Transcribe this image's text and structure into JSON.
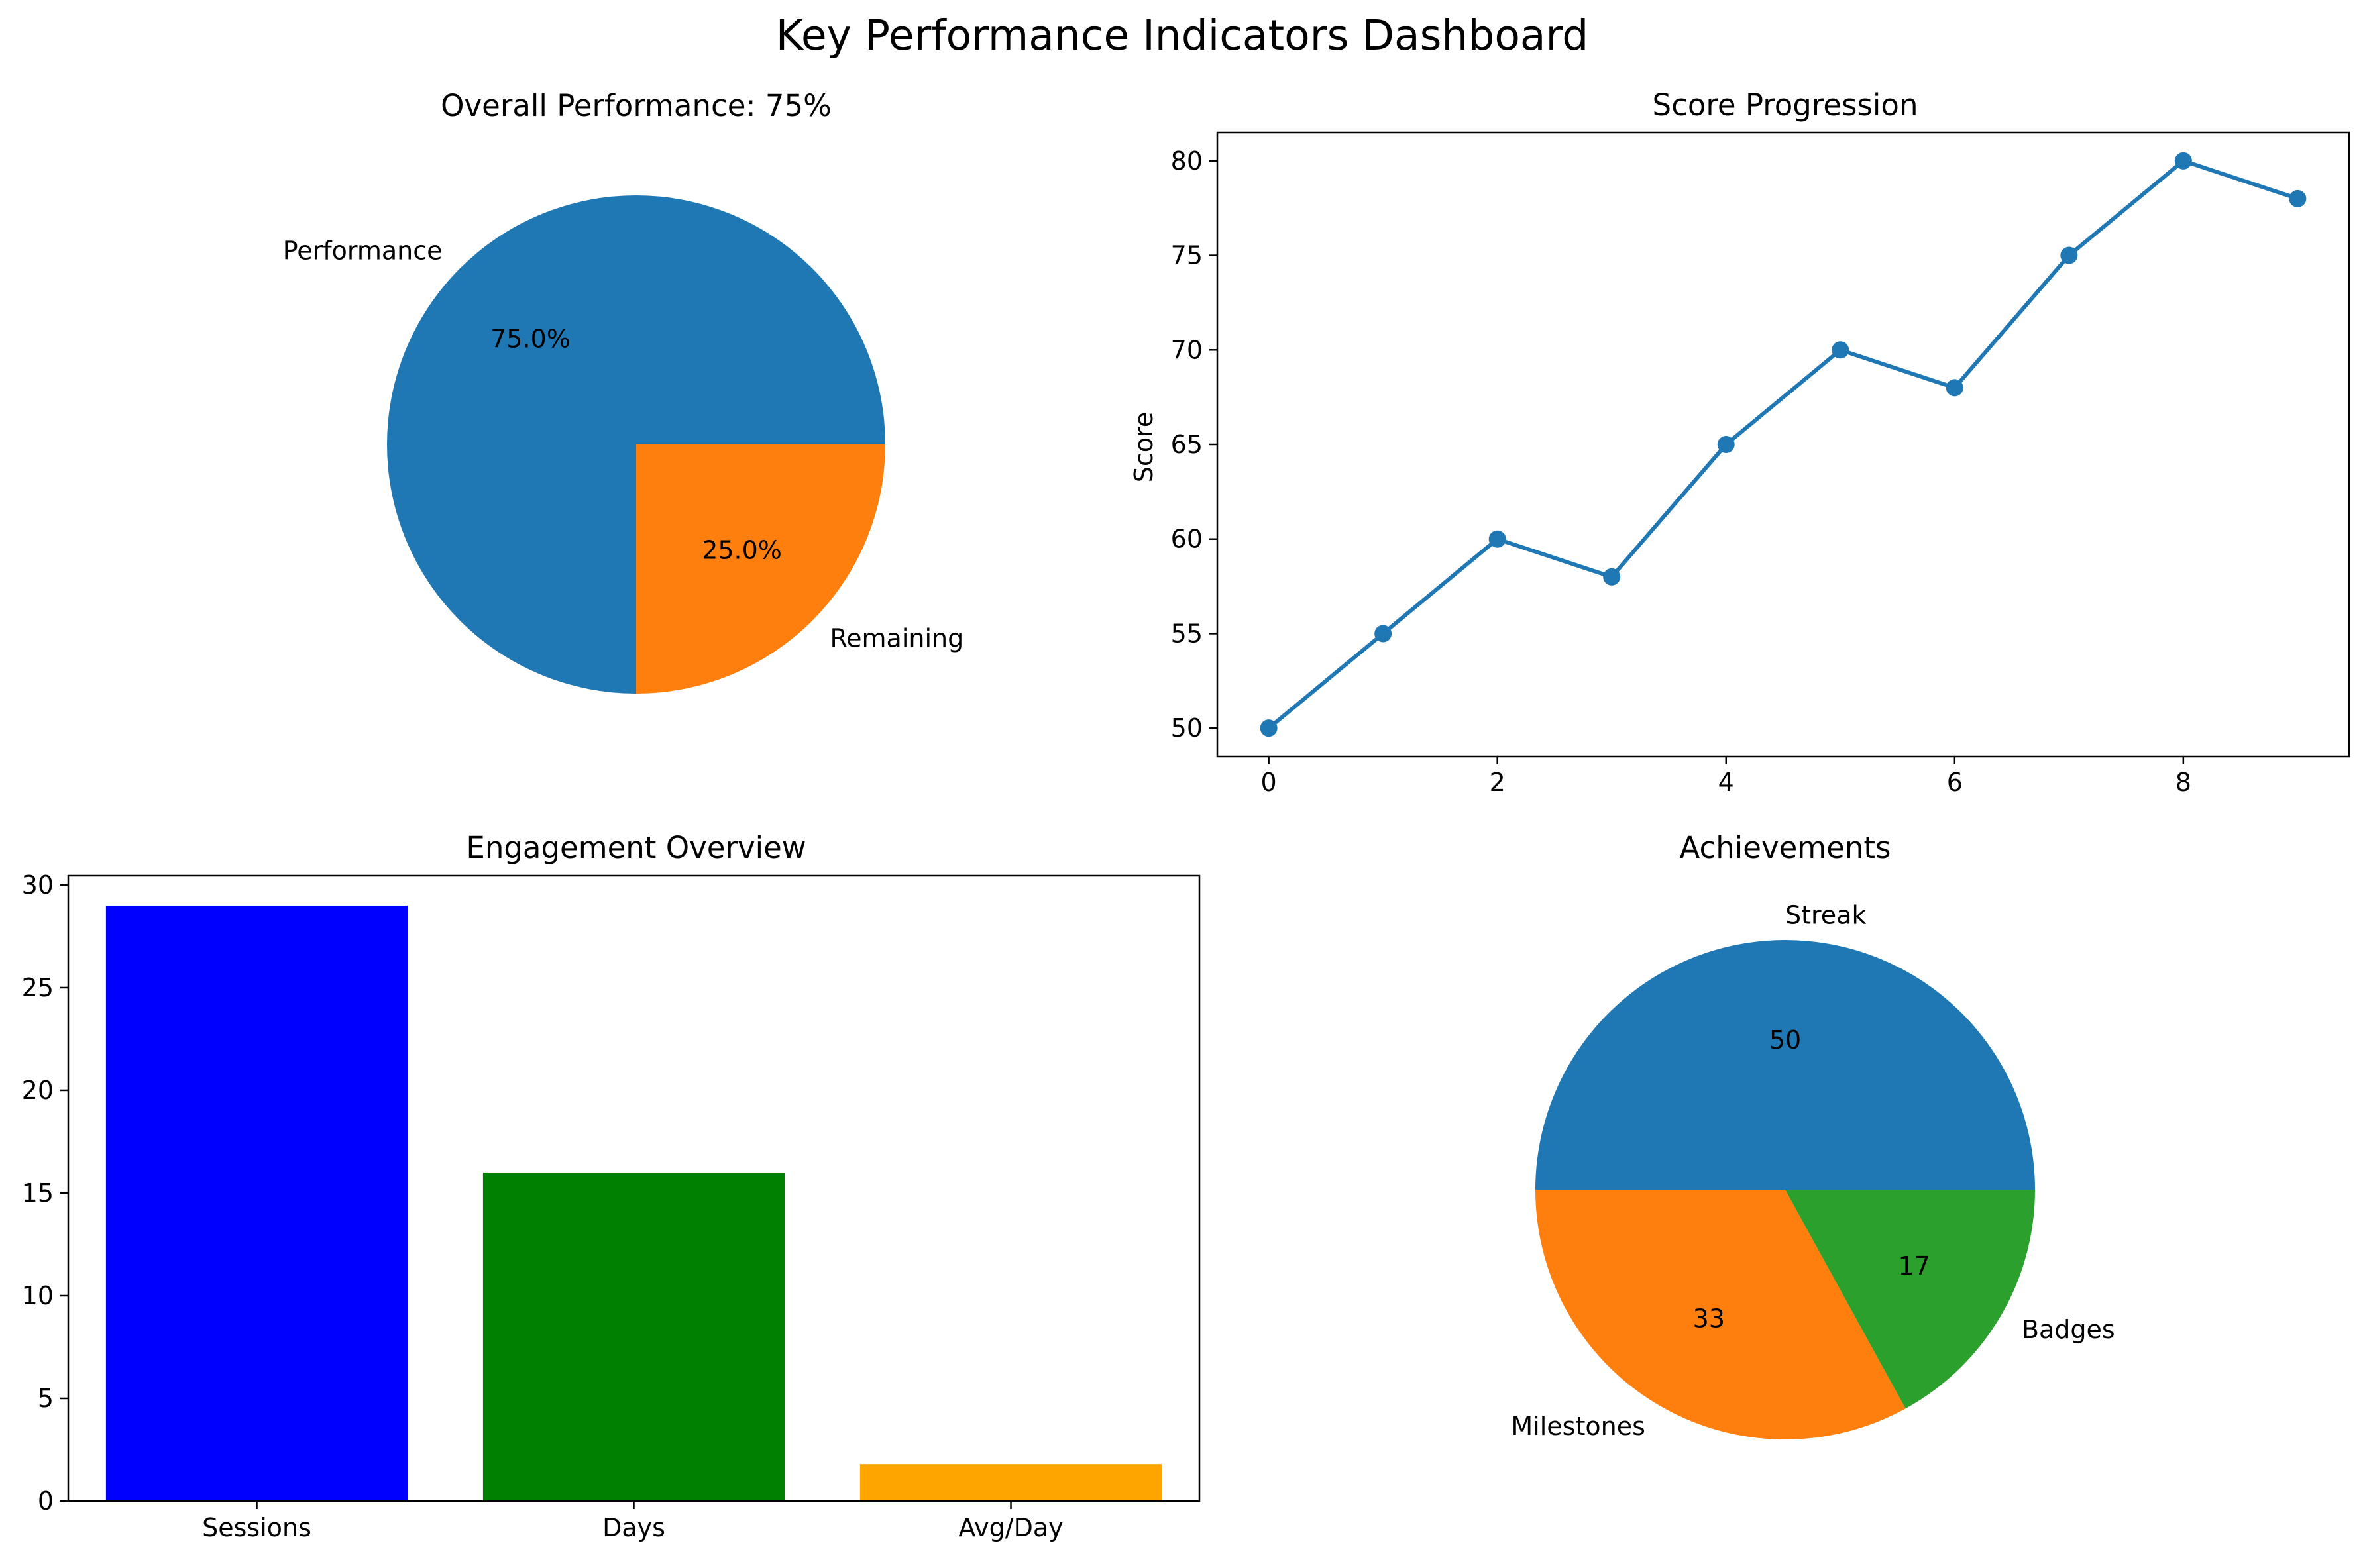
{
  "page_title": "Key Performance Indicators Dashboard",
  "colors": {
    "blue": "#1f77b4",
    "orange": "#ff7f0e",
    "green": "#2ca02c"
  },
  "chart_data": [
    {
      "id": "overall-performance",
      "type": "pie",
      "title": "Overall Performance: 75%",
      "slices": [
        {
          "label": "Performance",
          "value": 75,
          "pct_label": "75.0%",
          "color": "#1f77b4"
        },
        {
          "label": "Remaining",
          "value": 25,
          "pct_label": "25.0%",
          "color": "#ff7f0e"
        }
      ],
      "start_angle_deg": 0,
      "direction": "counterclockwise"
    },
    {
      "id": "score-progression",
      "type": "line",
      "title": "Score Progression",
      "xlabel": "",
      "ylabel": "Score",
      "x": [
        0,
        1,
        2,
        3,
        4,
        5,
        6,
        7,
        8,
        9
      ],
      "y": [
        50,
        55,
        60,
        58,
        65,
        70,
        68,
        75,
        80,
        78
      ],
      "xlim": [
        -0.45,
        9.45
      ],
      "ylim": [
        48.5,
        81.5
      ],
      "xticks": [
        0,
        2,
        4,
        6,
        8
      ],
      "yticks": [
        50,
        55,
        60,
        65,
        70,
        75,
        80
      ],
      "color": "#1f77b4",
      "marker": "circle",
      "grid": false
    },
    {
      "id": "engagement-overview",
      "type": "bar",
      "title": "Engagement Overview",
      "categories": [
        "Sessions",
        "Days",
        "Avg/Day"
      ],
      "values": [
        29,
        16,
        1.8
      ],
      "colors": [
        "#0000ff",
        "#008000",
        "#ffa500"
      ],
      "ylim": [
        0,
        30.45
      ],
      "yticks": [
        0,
        5,
        10,
        15,
        20,
        25,
        30
      ],
      "grid": false
    },
    {
      "id": "achievements",
      "type": "pie",
      "title": "Achievements",
      "slices": [
        {
          "label": "Streak",
          "value": 50,
          "pct_label": "50",
          "color": "#1f77b4"
        },
        {
          "label": "Milestones",
          "value": 33,
          "pct_label": "33",
          "color": "#ff7f0e"
        },
        {
          "label": "Badges",
          "value": 17,
          "pct_label": "17",
          "color": "#2ca02c"
        }
      ],
      "start_angle_deg": 0,
      "direction": "counterclockwise"
    }
  ]
}
